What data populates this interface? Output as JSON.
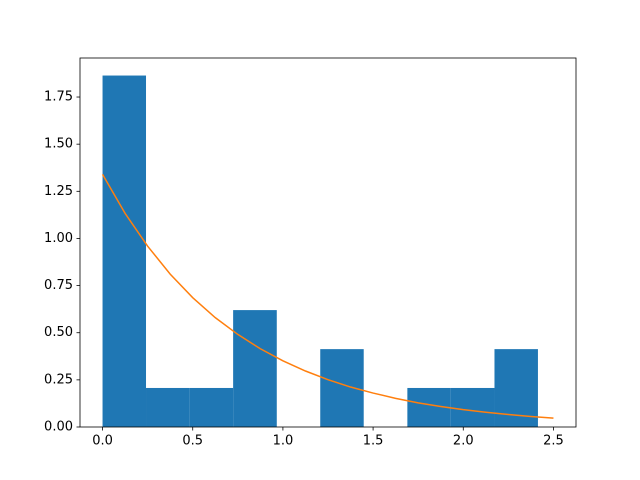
{
  "chart_data": {
    "type": "histogram",
    "bins": [
      0,
      0.241,
      0.483,
      0.724,
      0.966,
      1.207,
      1.448,
      1.69,
      1.931,
      2.173,
      2.414
    ],
    "values": [
      1.864,
      0.207,
      0.207,
      0.62,
      0,
      0.413,
      0,
      0.207,
      0.207,
      0.413
    ],
    "color": "#1f77b4",
    "curve": {
      "x": [
        0,
        0.125,
        0.25,
        0.375,
        0.5,
        0.625,
        0.75,
        0.875,
        1.0,
        1.125,
        1.25,
        1.375,
        1.5,
        1.625,
        1.75,
        1.875,
        2.0,
        2.125,
        2.25,
        2.375,
        2.5
      ],
      "values": [
        1.34,
        1.133,
        0.959,
        0.811,
        0.686,
        0.58,
        0.491,
        0.415,
        0.351,
        0.297,
        0.251,
        0.212,
        0.18,
        0.152,
        0.128,
        0.109,
        0.092,
        0.078,
        0.066,
        0.056,
        0.047
      ],
      "color": "#ff7f0e"
    },
    "xlim": [
      -0.125,
      2.625
    ],
    "ylim": [
      0,
      1.957
    ],
    "xticks": [
      {
        "value": 0,
        "label": "0.0"
      },
      0.5,
      {
        "value": 1,
        "label": "1.0"
      },
      1.5,
      {
        "value": 2,
        "label": "2.0"
      },
      2.5
    ],
    "yticks": [
      {
        "value": 0,
        "label": "0.00"
      },
      0.25,
      {
        "value": 0.5,
        "label": "0.50"
      },
      0.75,
      {
        "value": 1,
        "label": "1.00"
      },
      1.25,
      {
        "value": 1.5,
        "label": "1.50"
      },
      1.75
    ]
  }
}
